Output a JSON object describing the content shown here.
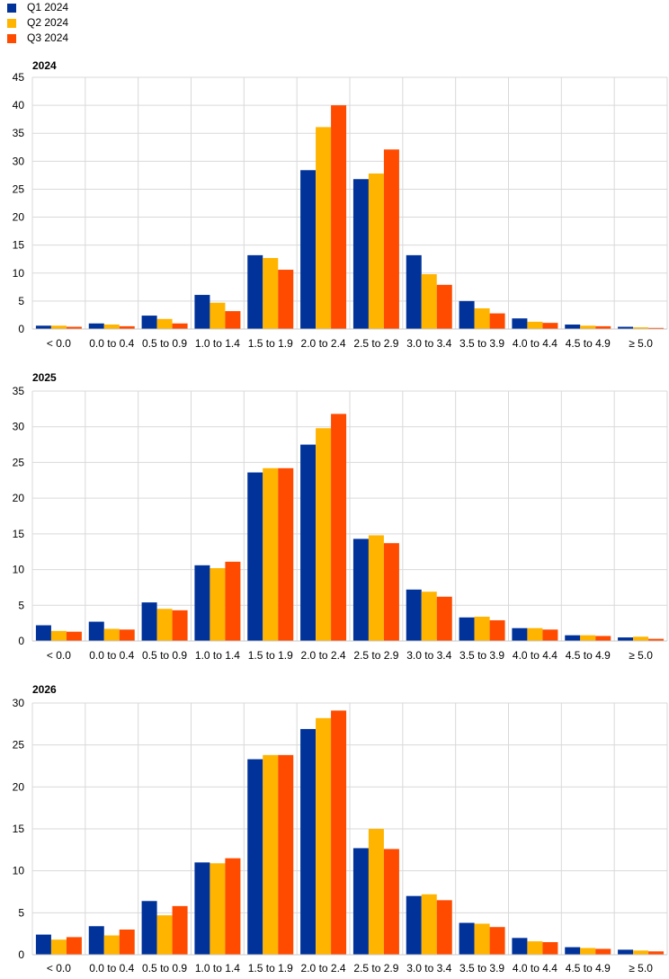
{
  "legend": {
    "items": [
      {
        "label": "Q1 2024",
        "color": "#003299"
      },
      {
        "label": "Q2 2024",
        "color": "#FFB400"
      },
      {
        "label": "Q3 2024",
        "color": "#FF4B00"
      }
    ]
  },
  "chart_data": [
    {
      "type": "bar",
      "title": "2024",
      "categories": [
        "< 0.0",
        "0.0 to 0.4",
        "0.5 to 0.9",
        "1.0 to 1.4",
        "1.5 to 1.9",
        "2.0 to 2.4",
        "2.5 to 2.9",
        "3.0 to 3.4",
        "3.5 to 3.9",
        "4.0 to 4.4",
        "4.5 to 4.9",
        "≥ 5.0"
      ],
      "series": [
        {
          "name": "Q1 2024",
          "values": [
            0.6,
            1.0,
            2.4,
            6.1,
            13.2,
            28.4,
            26.8,
            13.2,
            5.0,
            1.9,
            0.8,
            0.4
          ]
        },
        {
          "name": "Q2 2024",
          "values": [
            0.6,
            0.8,
            1.8,
            4.7,
            12.7,
            36.1,
            27.8,
            9.8,
            3.7,
            1.3,
            0.6,
            0.3
          ]
        },
        {
          "name": "Q3 2024",
          "values": [
            0.4,
            0.5,
            1.0,
            3.2,
            10.6,
            40.0,
            32.1,
            7.9,
            2.8,
            1.1,
            0.5,
            0.2
          ]
        }
      ],
      "ylim": [
        0,
        45
      ],
      "yticks": [
        0,
        5,
        10,
        15,
        20,
        25,
        30,
        35,
        40,
        45
      ],
      "grid": true
    },
    {
      "type": "bar",
      "title": "2025",
      "categories": [
        "< 0.0",
        "0.0 to 0.4",
        "0.5 to 0.9",
        "1.0 to 1.4",
        "1.5 to 1.9",
        "2.0 to 2.4",
        "2.5 to 2.9",
        "3.0 to 3.4",
        "3.5 to 3.9",
        "4.0 to 4.4",
        "4.5 to 4.9",
        "≥ 5.0"
      ],
      "series": [
        {
          "name": "Q1 2024",
          "values": [
            2.2,
            2.7,
            5.4,
            10.6,
            23.6,
            27.5,
            14.3,
            7.2,
            3.3,
            1.8,
            0.8,
            0.5
          ]
        },
        {
          "name": "Q2 2024",
          "values": [
            1.4,
            1.7,
            4.5,
            10.2,
            24.2,
            29.8,
            14.8,
            6.9,
            3.4,
            1.8,
            0.8,
            0.6
          ]
        },
        {
          "name": "Q3 2024",
          "values": [
            1.3,
            1.6,
            4.3,
            11.1,
            24.2,
            31.8,
            13.7,
            6.2,
            2.9,
            1.6,
            0.7,
            0.3
          ]
        }
      ],
      "ylim": [
        0,
        35
      ],
      "yticks": [
        0,
        5,
        10,
        15,
        20,
        25,
        30,
        35
      ],
      "grid": true
    },
    {
      "type": "bar",
      "title": "2026",
      "categories": [
        "< 0.0",
        "0.0 to 0.4",
        "0.5 to 0.9",
        "1.0 to 1.4",
        "1.5 to 1.9",
        "2.0 to 2.4",
        "2.5 to 2.9",
        "3.0 to 3.4",
        "3.5 to 3.9",
        "4.0 to 4.4",
        "4.5 to 4.9",
        "≥ 5.0"
      ],
      "series": [
        {
          "name": "Q1 2024",
          "values": [
            2.4,
            3.4,
            6.4,
            11.0,
            23.3,
            26.9,
            12.7,
            7.0,
            3.8,
            2.0,
            0.9,
            0.6
          ]
        },
        {
          "name": "Q2 2024",
          "values": [
            1.8,
            2.3,
            4.7,
            10.9,
            23.8,
            28.2,
            15.0,
            7.2,
            3.7,
            1.6,
            0.8,
            0.5
          ]
        },
        {
          "name": "Q3 2024",
          "values": [
            2.1,
            3.0,
            5.8,
            11.5,
            23.8,
            29.1,
            12.6,
            6.5,
            3.3,
            1.5,
            0.7,
            0.4
          ]
        }
      ],
      "ylim": [
        0,
        30
      ],
      "yticks": [
        0,
        5,
        10,
        15,
        20,
        25,
        30
      ],
      "grid": true
    }
  ]
}
